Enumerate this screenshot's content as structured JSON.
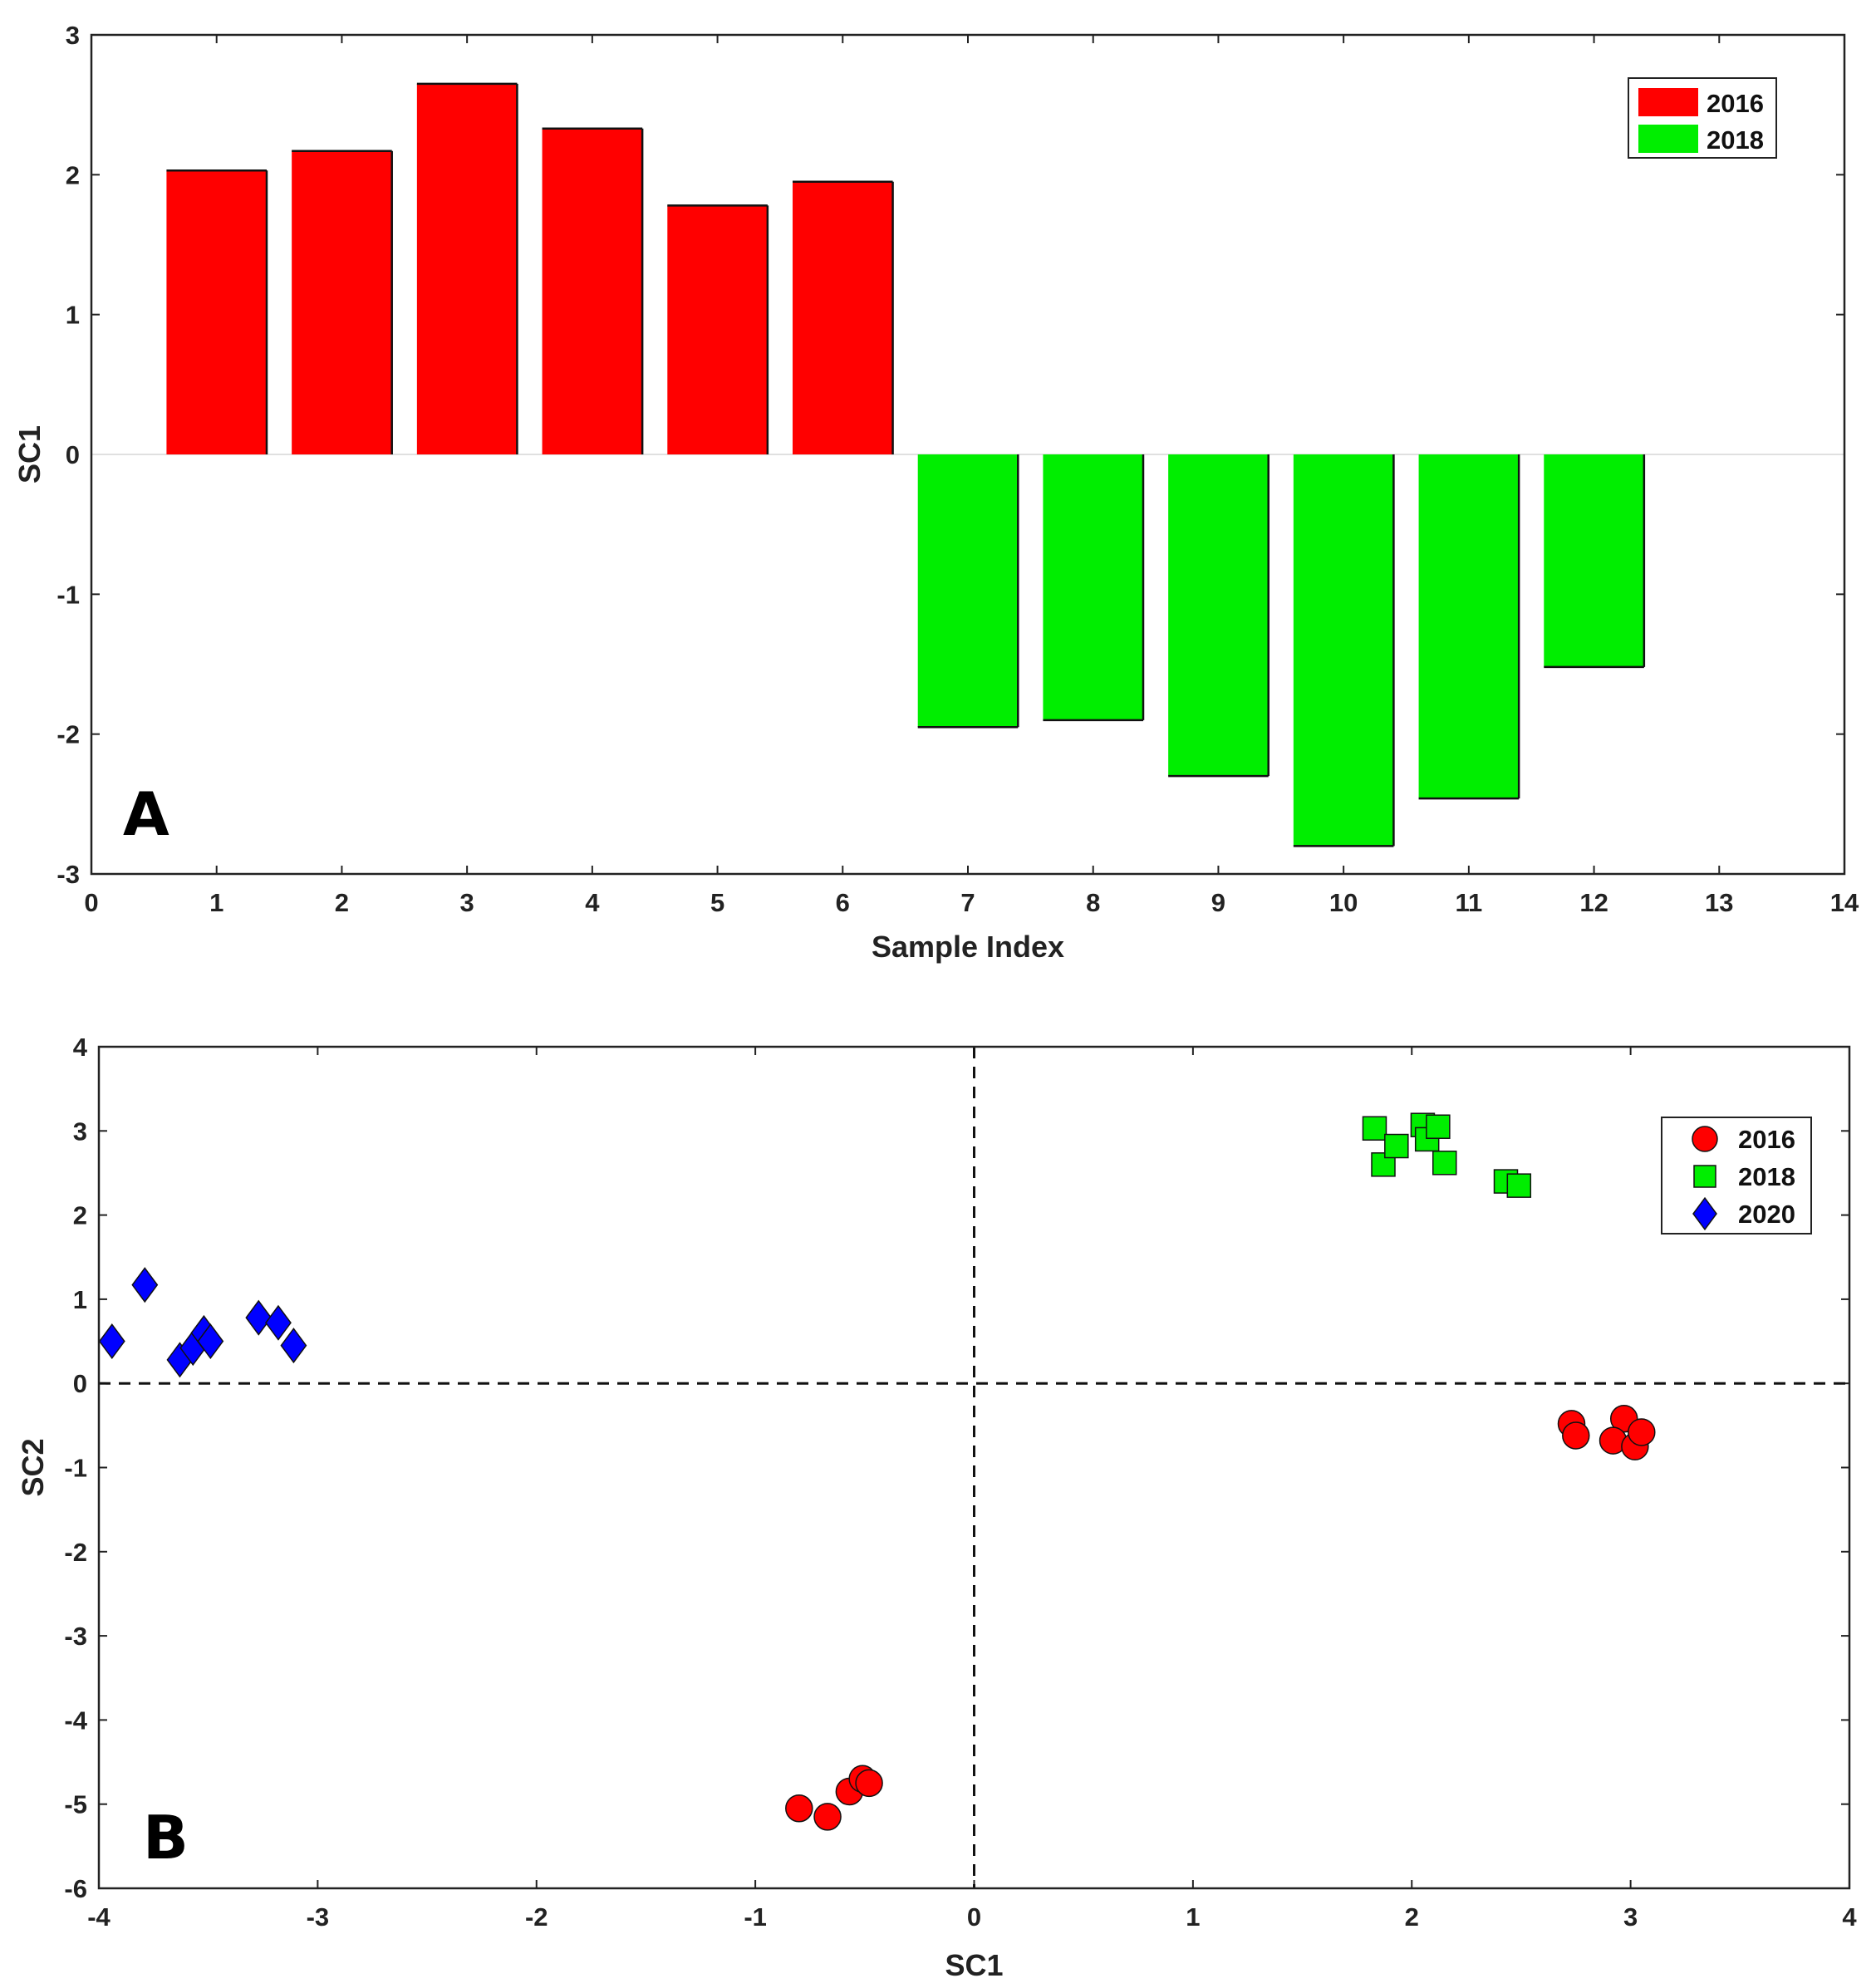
{
  "chart_data": [
    {
      "type": "bar",
      "panel_label": "A",
      "xlabel": "Sample Index",
      "ylabel": "SC1",
      "xlim": [
        0,
        14
      ],
      "ylim": [
        -3,
        3
      ],
      "xticks": [
        0,
        1,
        2,
        3,
        4,
        5,
        6,
        7,
        8,
        9,
        10,
        11,
        12,
        13,
        14
      ],
      "yticks": [
        -3,
        -2,
        -1,
        0,
        1,
        2,
        3
      ],
      "grid": false,
      "legend_position": "top-right",
      "colors": {
        "2016": "#ff0000",
        "2018": "#00ee00"
      },
      "series": [
        {
          "name": "2016",
          "x": [
            1,
            2,
            3,
            4,
            5,
            6
          ],
          "values": [
            2.03,
            2.17,
            2.65,
            2.33,
            1.78,
            1.95
          ]
        },
        {
          "name": "2018",
          "x": [
            7,
            8,
            9,
            10,
            11,
            12
          ],
          "values": [
            -1.95,
            -1.9,
            -2.3,
            -2.8,
            -2.46,
            -1.52
          ]
        }
      ]
    },
    {
      "type": "scatter",
      "panel_label": "B",
      "xlabel": "SC1",
      "ylabel": "SC2",
      "xlim": [
        -4,
        4
      ],
      "ylim": [
        -6,
        4
      ],
      "xticks": [
        -4,
        -3,
        -2,
        -1,
        0,
        1,
        2,
        3,
        4
      ],
      "yticks": [
        -6,
        -5,
        -4,
        -3,
        -2,
        -1,
        0,
        1,
        2,
        3,
        4
      ],
      "grid": false,
      "reference_lines": "dashed lines at x=0 and y=0",
      "legend_position": "top-right",
      "series": [
        {
          "name": "2016",
          "marker": "circle",
          "color": "#ff0000",
          "points": [
            [
              2.73,
              -0.48
            ],
            [
              2.75,
              -0.62
            ],
            [
              2.97,
              -0.42
            ],
            [
              2.92,
              -0.68
            ],
            [
              3.02,
              -0.75
            ],
            [
              3.05,
              -0.58
            ],
            [
              -0.8,
              -5.05
            ],
            [
              -0.67,
              -5.15
            ],
            [
              -0.57,
              -4.85
            ],
            [
              -0.51,
              -4.7
            ],
            [
              -0.48,
              -4.75
            ]
          ]
        },
        {
          "name": "2018",
          "marker": "square",
          "color": "#00ee00",
          "points": [
            [
              1.83,
              3.03
            ],
            [
              1.87,
              2.6
            ],
            [
              1.93,
              2.82
            ],
            [
              2.05,
              3.07
            ],
            [
              2.07,
              2.9
            ],
            [
              2.12,
              3.05
            ],
            [
              2.15,
              2.62
            ],
            [
              2.43,
              2.4
            ],
            [
              2.49,
              2.35
            ]
          ]
        },
        {
          "name": "2020",
          "marker": "diamond",
          "color": "#0000ff",
          "points": [
            [
              -3.94,
              0.5
            ],
            [
              -3.79,
              1.17
            ],
            [
              -3.63,
              0.28
            ],
            [
              -3.57,
              0.42
            ],
            [
              -3.52,
              0.6
            ],
            [
              -3.49,
              0.5
            ],
            [
              -3.27,
              0.78
            ],
            [
              -3.18,
              0.72
            ],
            [
              -3.11,
              0.45
            ]
          ]
        }
      ]
    }
  ]
}
